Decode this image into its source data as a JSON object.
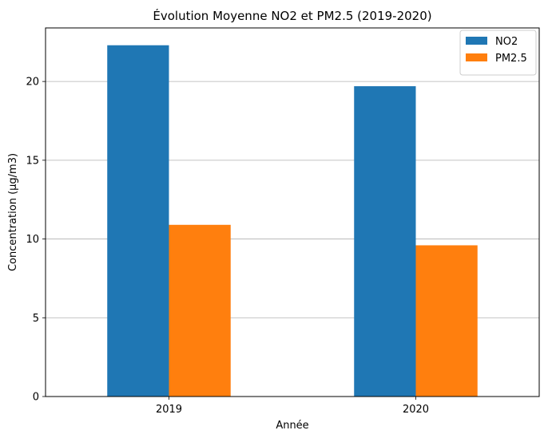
{
  "chart_data": {
    "type": "bar",
    "title": "Évolution Moyenne NO2 et PM2.5 (2019-2020)",
    "xlabel": "Année",
    "ylabel": "Concentration (µg/m3)",
    "categories": [
      "2019",
      "2020"
    ],
    "series": [
      {
        "name": "NO2",
        "color": "#1f77b4",
        "values": [
          22.3,
          19.7
        ]
      },
      {
        "name": "PM2.5",
        "color": "#ff7f0e",
        "values": [
          10.9,
          9.6
        ]
      }
    ],
    "ylim": [
      0,
      23.4
    ],
    "yticks": [
      0,
      5,
      10,
      15,
      20
    ],
    "grid": "y",
    "legend_position": "top-right"
  }
}
